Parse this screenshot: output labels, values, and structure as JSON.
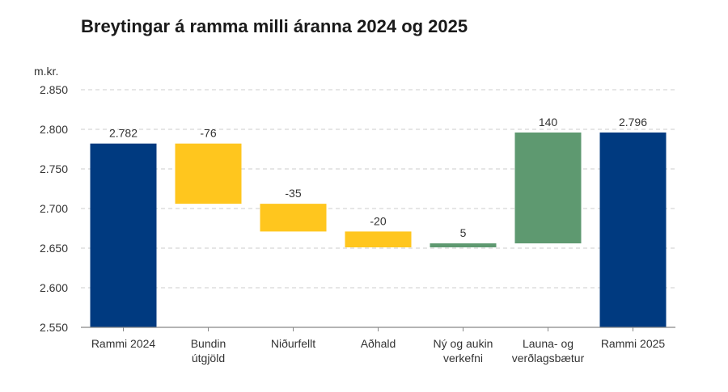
{
  "colors": {
    "total": "#003a80",
    "decrease": "#ffc61e",
    "increase": "#5e9970",
    "grid": "#cccccc",
    "axis": "#888888",
    "text": "#333333"
  },
  "chart_data": {
    "type": "bar",
    "subtype": "waterfall",
    "title": "Breytingar á ramma milli áranna 2024 og 2025",
    "ylabel": "m.kr.",
    "xlabel": "",
    "ylim": [
      2550,
      2850
    ],
    "yticks": [
      2550,
      2600,
      2650,
      2700,
      2750,
      2800,
      2850
    ],
    "ytick_labels": [
      "2.550",
      "2.600",
      "2.650",
      "2.700",
      "2.750",
      "2.800",
      "2.850"
    ],
    "grid": true,
    "legend": "none",
    "categories": [
      [
        "Rammi 2024"
      ],
      [
        "Bundin",
        "útgjöld"
      ],
      [
        "Niðurfellt"
      ],
      [
        "Aðhald"
      ],
      [
        "Ný og aukin",
        "verkefni"
      ],
      [
        "Launa- og",
        "verðlagsbætur"
      ],
      [
        "Rammi 2025"
      ]
    ],
    "bars": [
      {
        "kind": "total",
        "start": 2550,
        "end": 2782,
        "label": "2.782"
      },
      {
        "kind": "decrease",
        "start": 2782,
        "end": 2706,
        "label": "-76"
      },
      {
        "kind": "decrease",
        "start": 2706,
        "end": 2671,
        "label": "-35"
      },
      {
        "kind": "decrease",
        "start": 2671,
        "end": 2651,
        "label": "-20"
      },
      {
        "kind": "increase",
        "start": 2651,
        "end": 2656,
        "label": "5"
      },
      {
        "kind": "increase",
        "start": 2656,
        "end": 2796,
        "label": "140"
      },
      {
        "kind": "total",
        "start": 2550,
        "end": 2796,
        "label": "2.796"
      }
    ]
  }
}
